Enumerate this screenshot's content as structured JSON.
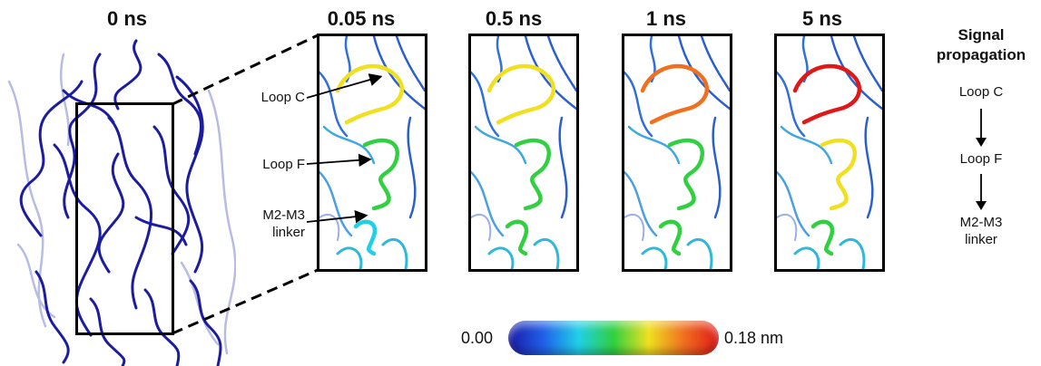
{
  "frames": [
    {
      "label": "0 ns"
    },
    {
      "label": "0.05 ns"
    },
    {
      "label": "0.5 ns"
    },
    {
      "label": "1 ns"
    },
    {
      "label": "5 ns"
    }
  ],
  "annotations": {
    "loop_c": "Loop C",
    "loop_f": "Loop F",
    "m2m3_line1": "M2-M3",
    "m2m3_line2": "linker"
  },
  "signal": {
    "title_line1": "Signal",
    "title_line2": "propagation",
    "steps": [
      "Loop C",
      "Loop F",
      "M2-M3",
      "linker"
    ]
  },
  "colorbar": {
    "min_label": "0.00",
    "max_label": "0.18 nm",
    "colors": [
      "#1a1aa8",
      "#2060e8",
      "#20d0e8",
      "#30d040",
      "#f0e020",
      "#f07020",
      "#e01818"
    ]
  }
}
